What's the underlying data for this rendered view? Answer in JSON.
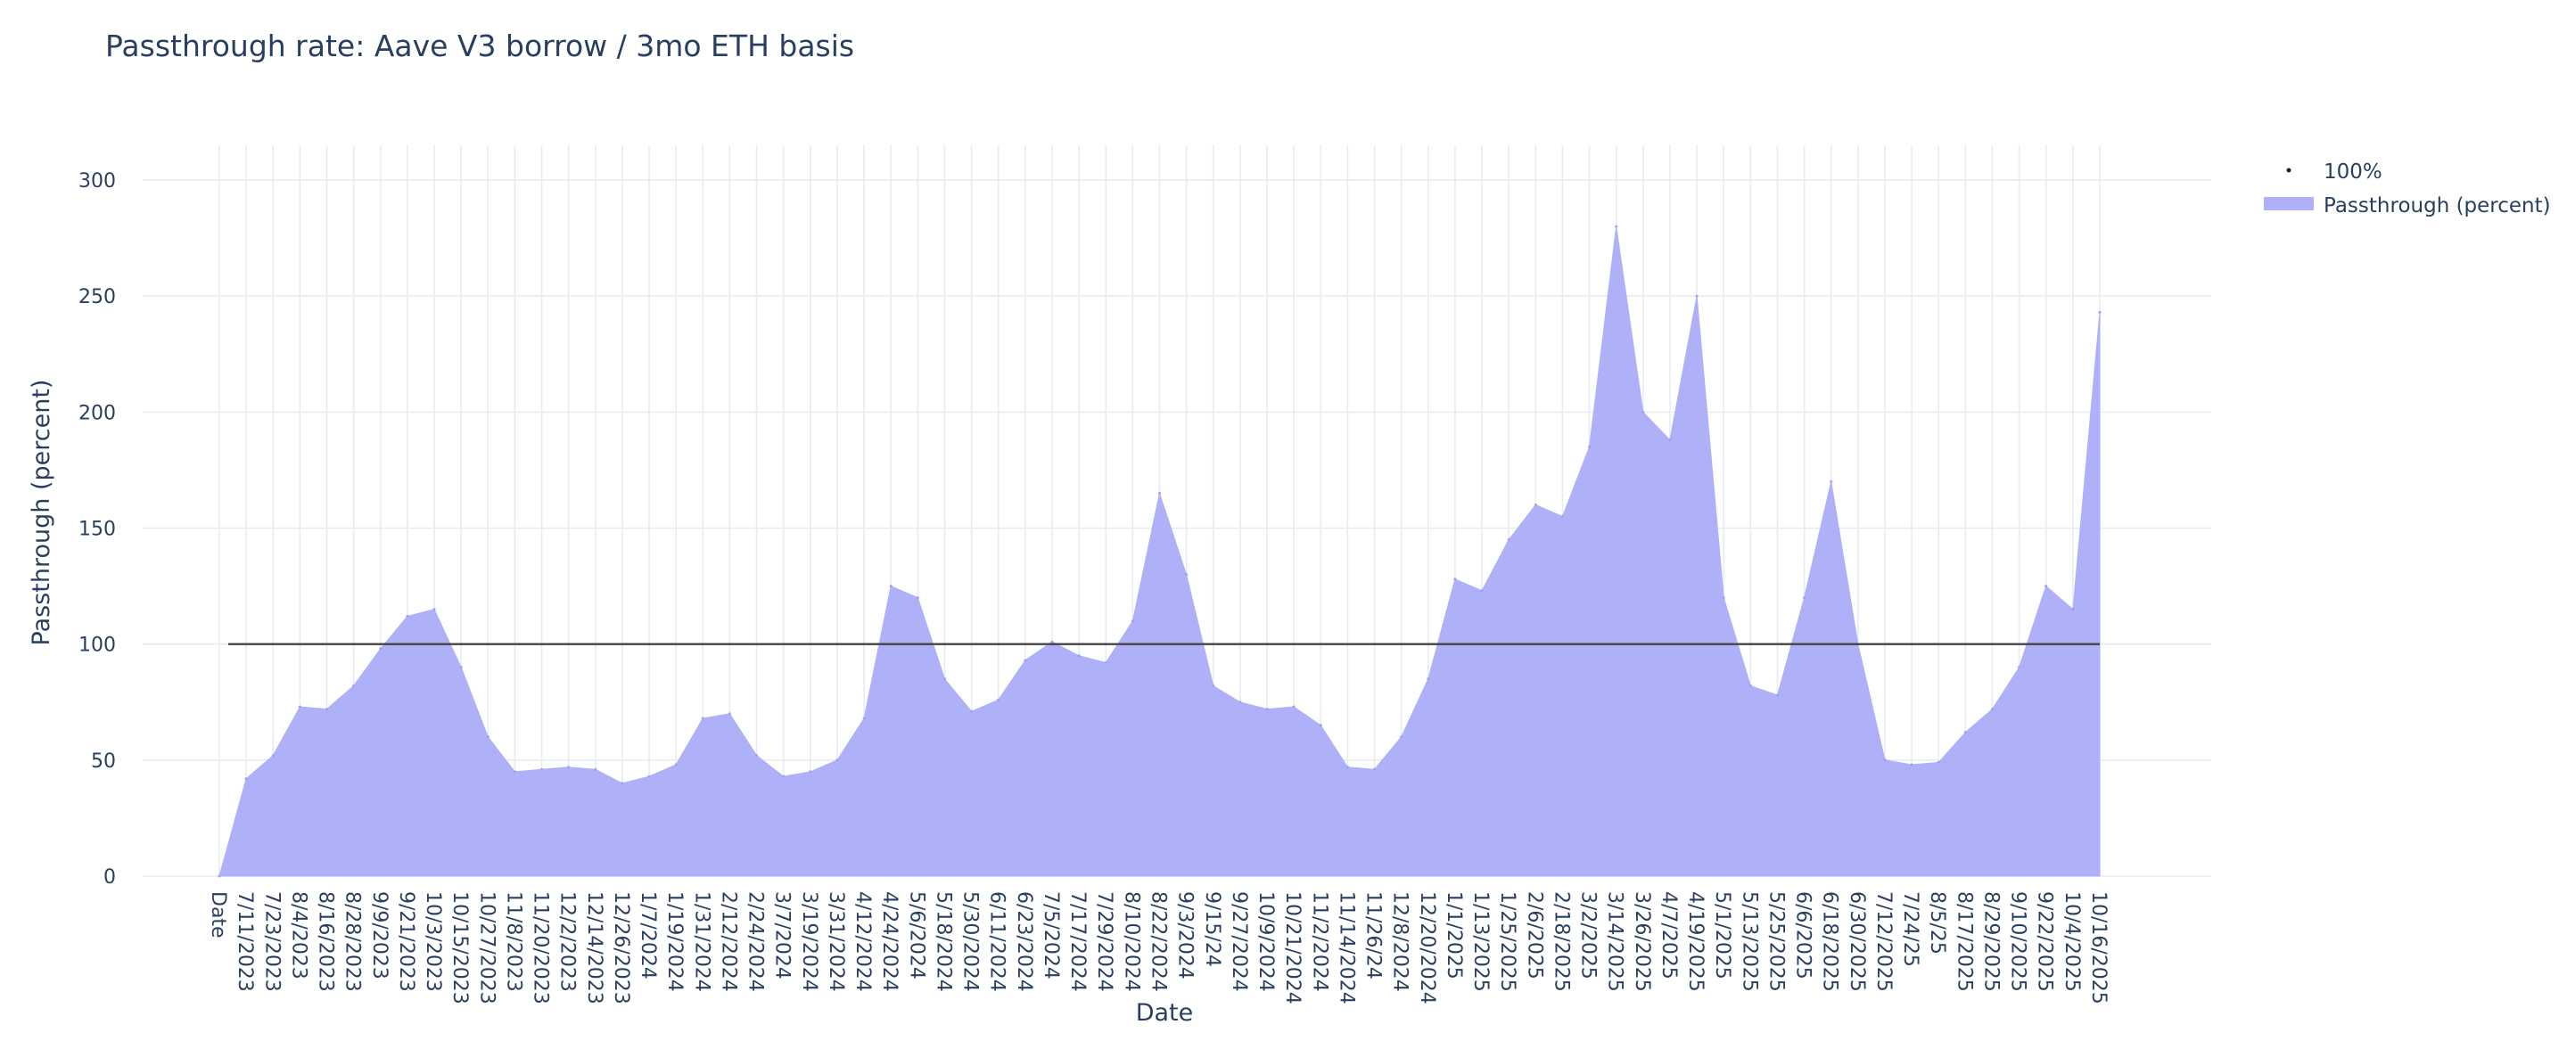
{
  "chart_data": {
    "type": "area",
    "title": "Passthrough rate: Aave V3 borrow / 3mo ETH basis",
    "xlabel": "Date",
    "ylabel": "Passthrough (percent)",
    "ylim": [
      0,
      315
    ],
    "yticks": [
      0,
      50,
      100,
      150,
      200,
      250,
      300
    ],
    "grid": true,
    "legend_position": "top-right",
    "categories": [
      "Date",
      "7/11/2023",
      "7/23/2023",
      "8/4/2023",
      "8/16/2023",
      "8/28/2023",
      "9/9/2023",
      "9/21/2023",
      "10/3/2023",
      "10/15/2023",
      "10/27/2023",
      "11/8/2023",
      "11/20/2023",
      "12/2/2023",
      "12/14/2023",
      "12/26/2023",
      "1/7/2024",
      "1/19/2024",
      "1/31/2024",
      "2/12/2024",
      "2/24/2024",
      "3/7/2024",
      "3/19/2024",
      "3/31/2024",
      "4/12/2024",
      "4/24/2024",
      "5/6/2024",
      "5/18/2024",
      "5/30/2024",
      "6/11/2024",
      "6/23/2024",
      "7/5/2024",
      "7/17/2024",
      "7/29/2024",
      "8/10/2024",
      "8/22/2024",
      "9/3/2024",
      "9/15/24",
      "9/27/2024",
      "10/9/2024",
      "10/21/2024",
      "11/2/2024",
      "11/14/2024",
      "11/26/24",
      "12/8/2024",
      "12/20/2024",
      "1/1/2025",
      "1/13/2025",
      "1/25/2025",
      "2/6/2025",
      "2/18/2025",
      "3/2/2025",
      "3/14/2025",
      "3/26/2025",
      "4/7/2025",
      "4/19/2025",
      "5/1/2025",
      "5/13/2025",
      "5/25/2025",
      "6/6/2025",
      "6/18/2025",
      "6/30/2025",
      "7/12/2025",
      "7/24/25",
      "8/5/25",
      "8/17/2025",
      "8/29/2025",
      "9/10/2025",
      "9/22/2025",
      "10/4/2025",
      "10/16/2025"
    ],
    "series": [
      {
        "name": "Passthrough (percent)",
        "type": "area",
        "color": "#aeb0f8",
        "x": [
          "Date",
          "7/11/2023",
          "7/23/2023",
          "8/4/2023",
          "8/16/2023",
          "8/28/2023",
          "9/9/2023",
          "9/21/2023",
          "10/3/2023",
          "10/15/2023",
          "10/27/2023",
          "11/8/2023",
          "11/20/2023",
          "12/2/2023",
          "12/14/2023",
          "12/26/2023",
          "1/7/2024",
          "1/19/2024",
          "1/31/2024",
          "2/12/2024",
          "2/24/2024",
          "3/7/2024",
          "3/19/2024",
          "3/31/2024",
          "4/12/2024",
          "4/24/2024",
          "5/6/2024",
          "5/18/2024",
          "5/30/2024",
          "6/11/2024",
          "6/23/2024",
          "7/5/2024",
          "7/17/2024",
          "7/29/2024",
          "8/10/2024",
          "8/22/2024",
          "9/3/2024",
          "9/15/24",
          "9/27/2024",
          "10/9/2024",
          "10/21/2024",
          "11/2/2024",
          "11/14/2024",
          "11/26/24",
          "12/8/2024",
          "12/20/2024",
          "1/1/2025",
          "1/13/2025",
          "1/25/2025",
          "2/6/2025",
          "2/18/2025",
          "3/2/2025",
          "3/14/2025",
          "3/26/2025",
          "4/7/2025",
          "4/19/2025",
          "5/1/2025",
          "5/13/2025",
          "5/25/2025",
          "6/6/2025",
          "6/18/2025",
          "6/30/2025",
          "7/12/2025",
          "7/24/25",
          "8/5/25",
          "8/17/2025",
          "8/29/2025",
          "9/10/2025",
          "9/22/2025",
          "10/4/2025",
          "10/16/2025"
        ],
        "values": [
          0,
          42,
          52,
          73,
          72,
          82,
          98,
          112,
          115,
          90,
          60,
          45,
          46,
          47,
          46,
          40,
          43,
          48,
          68,
          70,
          52,
          43,
          45,
          50,
          68,
          125,
          120,
          85,
          71,
          76,
          93,
          101,
          95,
          92,
          110,
          165,
          130,
          82,
          75,
          72,
          73,
          65,
          47,
          46,
          60,
          85,
          128,
          123,
          145,
          160,
          155,
          185,
          280,
          200,
          188,
          250,
          120,
          82,
          78,
          120,
          170,
          100,
          50,
          48,
          49,
          62,
          72,
          90,
          125,
          115,
          243
        ]
      },
      {
        "name": "100%",
        "type": "line",
        "color": "#444444",
        "value": 100
      }
    ]
  }
}
